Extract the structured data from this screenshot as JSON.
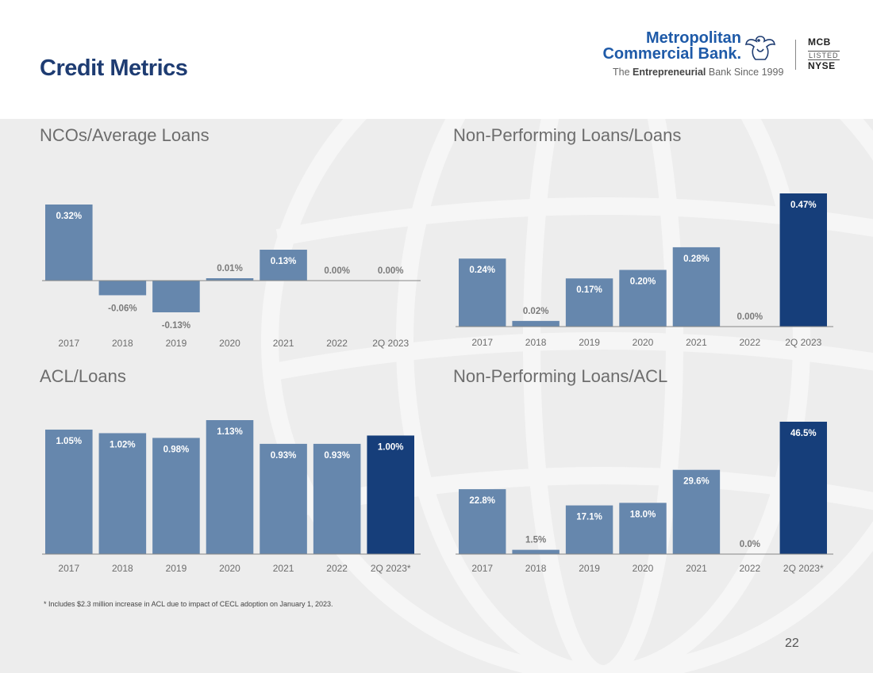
{
  "page": {
    "title": "Credit Metrics",
    "footnote": "* Includes $2.3 million increase in ACL due to impact of CECL adoption on January  1, 2023.",
    "page_number": "22"
  },
  "logo": {
    "line1": "Metropolitan",
    "line2": "Commercial Bank.",
    "tagline_pre": "The ",
    "tagline_bold": "Entrepreneurial",
    "tagline_post": " Bank Since 1999",
    "ticker": "MCB",
    "listed": "LISTED",
    "exchange": "NYSE"
  },
  "colors": {
    "bar": "#6687ad",
    "highlight": "#163e7a",
    "axis": "#888888",
    "label_dark": "#7a7a7a",
    "title": "#1e3c72"
  },
  "chart_data": [
    {
      "type": "bar",
      "title": "NCOs/Average Loans",
      "categories": [
        "2017",
        "2018",
        "2019",
        "2020",
        "2021",
        "2022",
        "2Q 2023"
      ],
      "values": [
        0.32,
        -0.06,
        -0.13,
        0.01,
        0.13,
        0.0,
        0.0
      ],
      "labels": [
        "0.32%",
        "-0.06%",
        "-0.13%",
        "0.01%",
        "0.13%",
        "0.00%",
        "0.00%"
      ],
      "ylim": [
        -0.13,
        0.32
      ],
      "highlight_last": false
    },
    {
      "type": "bar",
      "title": "Non-Performing Loans/Loans",
      "categories": [
        "2017",
        "2018",
        "2019",
        "2020",
        "2021",
        "2022",
        "2Q 2023"
      ],
      "values": [
        0.24,
        0.02,
        0.17,
        0.2,
        0.28,
        0.0,
        0.47
      ],
      "labels": [
        "0.24%",
        "0.02%",
        "0.17%",
        "0.20%",
        "0.28%",
        "0.00%",
        "0.47%"
      ],
      "ylim": [
        0,
        0.47
      ],
      "highlight_last": true
    },
    {
      "type": "bar",
      "title": "ACL/Loans",
      "categories": [
        "2017",
        "2018",
        "2019",
        "2020",
        "2021",
        "2022",
        "2Q 2023*"
      ],
      "values": [
        1.05,
        1.02,
        0.98,
        1.13,
        0.93,
        0.93,
        1.0
      ],
      "labels": [
        "1.05%",
        "1.02%",
        "0.98%",
        "1.13%",
        "0.93%",
        "0.93%",
        "1.00%"
      ],
      "ylim": [
        0,
        1.13
      ],
      "highlight_last": true
    },
    {
      "type": "bar",
      "title": "Non-Performing Loans/ACL",
      "categories": [
        "2017",
        "2018",
        "2019",
        "2020",
        "2021",
        "2022",
        "2Q 2023*"
      ],
      "values": [
        22.8,
        1.5,
        17.1,
        18.0,
        29.6,
        0.0,
        46.5
      ],
      "labels": [
        "22.8%",
        "1.5%",
        "17.1%",
        "18.0%",
        "29.6%",
        "0.0%",
        "46.5%"
      ],
      "ylim": [
        0,
        46.5
      ],
      "highlight_last": true
    }
  ]
}
